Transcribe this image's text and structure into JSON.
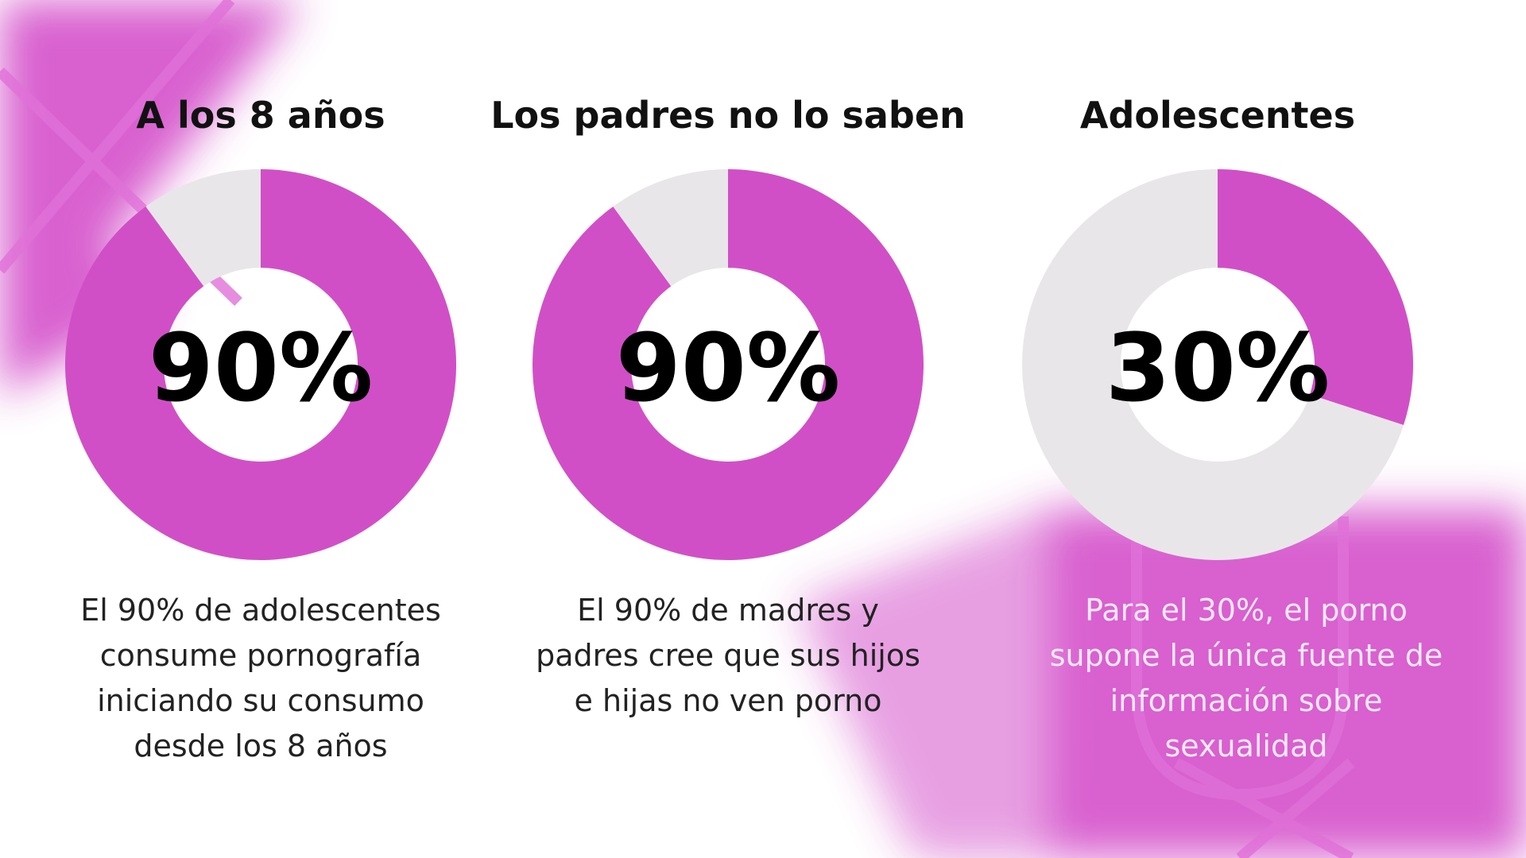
{
  "chart_data": [
    {
      "type": "pie",
      "title": "A los 8 años",
      "values": [
        90,
        10
      ],
      "value_labels": [
        "90%",
        null
      ],
      "colors": [
        "#d14fc6",
        "#e9e6e9"
      ],
      "caption": "El 90% de adolescentes consume pornografía iniciando su consumo desde los 8 años"
    },
    {
      "type": "pie",
      "title": "Los padres no lo saben",
      "values": [
        90,
        10
      ],
      "value_labels": [
        "90%",
        null
      ],
      "colors": [
        "#d14fc6",
        "#e9e6e9"
      ],
      "caption": "El 90% de madres y padres cree que sus hijos e hijas no ven porno"
    },
    {
      "type": "pie",
      "title": "Adolescentes",
      "values": [
        30,
        70
      ],
      "value_labels": [
        "30%",
        null
      ],
      "colors": [
        "#d14fc6",
        "#e9e6e9"
      ],
      "caption": "Para el 30%, el porno supone la única fuente de información sobre sexualidad"
    }
  ]
}
